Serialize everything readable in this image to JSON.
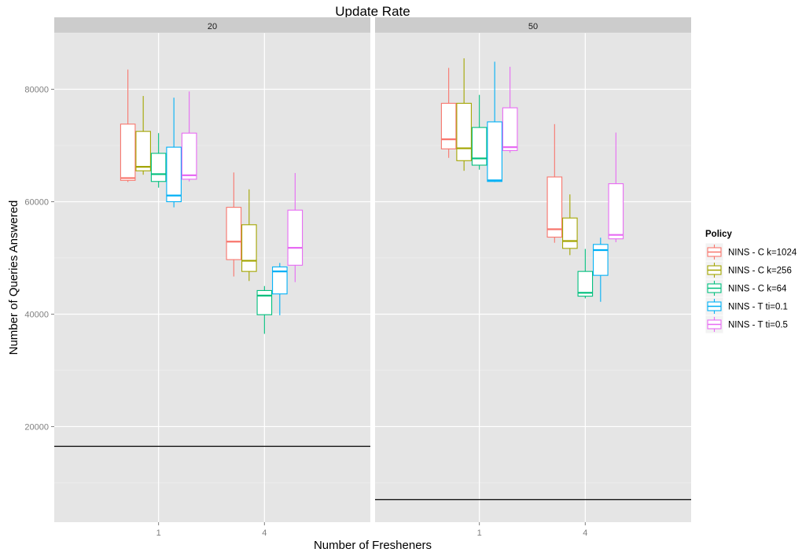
{
  "chart_data": {
    "type": "boxplot",
    "title": "Update Rate",
    "xlabel": "Number of Fresheners",
    "ylabel": "Number of Queries Answered",
    "ylim": [
      3000,
      90000
    ],
    "yticks": [
      20000,
      40000,
      60000,
      80000
    ],
    "ytick_labels": [
      "20000",
      "40000",
      "60000",
      "80000"
    ],
    "categories": [
      "1",
      "4"
    ],
    "grid": true,
    "legend": {
      "title": "Policy",
      "position": "right"
    },
    "series": [
      {
        "name": "NINS - C k=1024",
        "color": "#f8766d"
      },
      {
        "name": "NINS - C k=256",
        "color": "#a3a500"
      },
      {
        "name": "NINS - C k=64",
        "color": "#00bf7d"
      },
      {
        "name": "NINS - T ti=0.1",
        "color": "#00b0f6"
      },
      {
        "name": "NINS - T ti=0.5",
        "color": "#e76bf3"
      }
    ],
    "panels": [
      {
        "label": "20",
        "hline": 16500,
        "boxes": {
          "1": [
            {
              "min": 63500,
              "q1": 63800,
              "median": 64200,
              "q3": 73800,
              "max": 83500
            },
            {
              "min": 64800,
              "q1": 65500,
              "median": 66200,
              "q3": 72500,
              "max": 78800
            },
            {
              "min": 62500,
              "q1": 63600,
              "median": 64900,
              "q3": 68600,
              "max": 72200
            },
            {
              "min": 59000,
              "q1": 60000,
              "median": 61100,
              "q3": 69700,
              "max": 78500
            },
            {
              "min": 63600,
              "q1": 64000,
              "median": 64700,
              "q3": 72200,
              "max": 79600
            }
          ],
          "4": [
            {
              "min": 46700,
              "q1": 49700,
              "median": 52900,
              "q3": 59000,
              "max": 65200
            },
            {
              "min": 45900,
              "q1": 47600,
              "median": 49500,
              "q3": 55900,
              "max": 62200
            },
            {
              "min": 36500,
              "q1": 39900,
              "median": 43300,
              "q3": 44200,
              "max": 45000
            },
            {
              "min": 39800,
              "q1": 43600,
              "median": 47600,
              "q3": 48400,
              "max": 49100
            },
            {
              "min": 45700,
              "q1": 48700,
              "median": 51800,
              "q3": 58500,
              "max": 65100
            }
          ]
        }
      },
      {
        "label": "50",
        "hline": 7000,
        "boxes": {
          "1": [
            {
              "min": 67800,
              "q1": 69400,
              "median": 71100,
              "q3": 77500,
              "max": 83800
            },
            {
              "min": 65500,
              "q1": 67300,
              "median": 69500,
              "q3": 77500,
              "max": 85500
            },
            {
              "min": 65700,
              "q1": 66500,
              "median": 67700,
              "q3": 73200,
              "max": 79000
            },
            {
              "min": 63500,
              "q1": 63600,
              "median": 63800,
              "q3": 74200,
              "max": 84900
            },
            {
              "min": 68700,
              "q1": 69100,
              "median": 69700,
              "q3": 76700,
              "max": 84000
            }
          ],
          "4": [
            {
              "min": 52700,
              "q1": 53700,
              "median": 55100,
              "q3": 64400,
              "max": 73800
            },
            {
              "min": 50500,
              "q1": 51700,
              "median": 53000,
              "q3": 57100,
              "max": 61300
            },
            {
              "min": 42800,
              "q1": 43200,
              "median": 43800,
              "q3": 47600,
              "max": 51600
            },
            {
              "min": 42200,
              "q1": 46900,
              "median": 51400,
              "q3": 52400,
              "max": 53600
            },
            {
              "min": 52800,
              "q1": 53400,
              "median": 54100,
              "q3": 63200,
              "max": 72300
            }
          ]
        }
      }
    ]
  }
}
